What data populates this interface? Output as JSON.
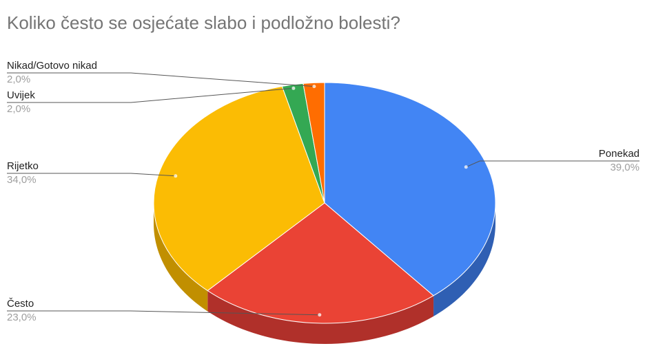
{
  "chart_data": {
    "type": "pie",
    "title": "Koliko često se osjećate slabo i podložno bolesti?",
    "style": "3d",
    "start_angle_deg": 0,
    "direction": "clockwise",
    "legend": "none",
    "slices": [
      {
        "name": "Ponekad",
        "value": 39.0,
        "label": "39,0%",
        "color": "#4285f4",
        "side_color": "#2f5fb3"
      },
      {
        "name": "Često",
        "value": 23.0,
        "label": "23,0%",
        "color": "#ea4335",
        "side_color": "#b0302a"
      },
      {
        "name": "Rijetko",
        "value": 34.0,
        "label": "34,0%",
        "color": "#fbbc04",
        "side_color": "#c18f00"
      },
      {
        "name": "Uvijek",
        "value": 2.0,
        "label": "2,0%",
        "color": "#34a853",
        "side_color": "#25793b"
      },
      {
        "name": "Nikad/Gotovo nikad",
        "value": 2.0,
        "label": "2,0%",
        "color": "#ff6d01",
        "side_color": "#c25200"
      }
    ]
  }
}
